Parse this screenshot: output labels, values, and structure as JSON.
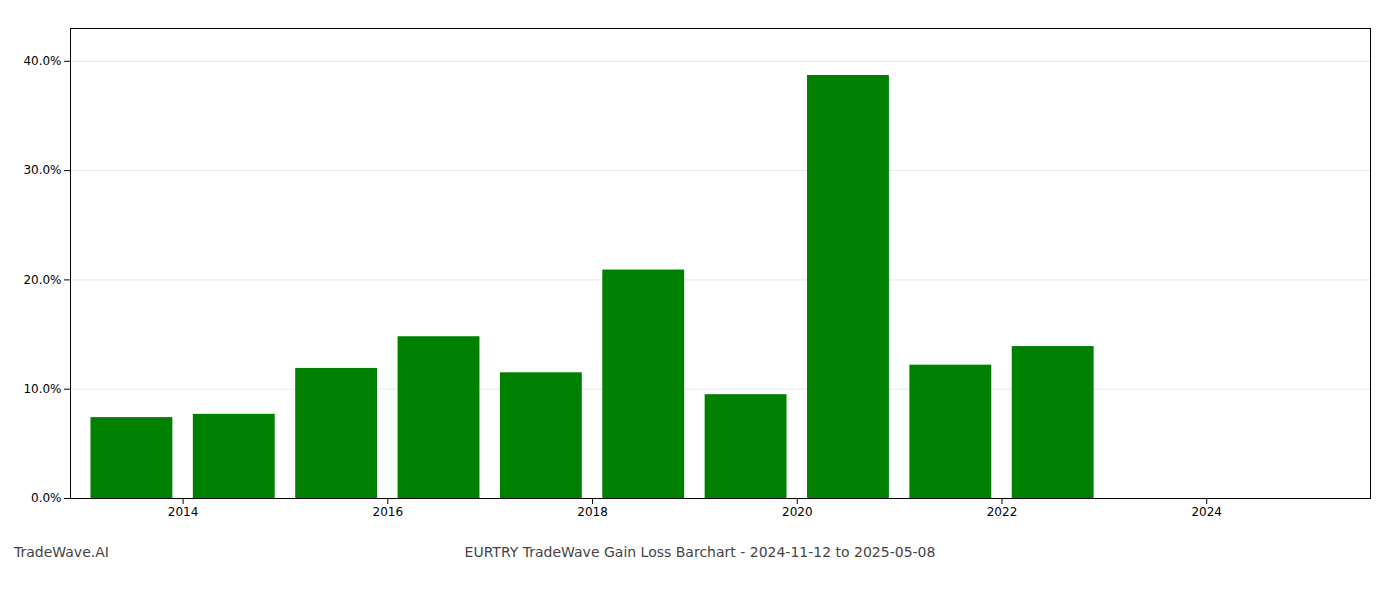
{
  "chart_data": {
    "type": "bar",
    "title": "EURTRY TradeWave Gain Loss Barchart - 2024-11-12 to 2025-05-08",
    "annotations": [
      "TradeWave.AI"
    ],
    "x": [
      2013,
      2014,
      2015,
      2016,
      2017,
      2018,
      2019,
      2020,
      2021,
      2022,
      2023
    ],
    "values": [
      0.074,
      0.077,
      0.119,
      0.148,
      0.115,
      0.209,
      0.095,
      0.387,
      0.122,
      0.139,
      0.0
    ],
    "color": "#008000",
    "xlim": [
      2012.4,
      2025.1
    ],
    "xticks": [
      {
        "value": 2013.5,
        "label": "2014"
      },
      {
        "value": 2015.5,
        "label": "2016"
      },
      {
        "value": 2017.5,
        "label": "2018"
      },
      {
        "value": 2019.5,
        "label": "2020"
      },
      {
        "value": 2021.5,
        "label": "2022"
      },
      {
        "value": 2023.5,
        "label": "2024"
      }
    ],
    "ylim": [
      0,
      0.43
    ],
    "yticks": [
      {
        "value": 0.0,
        "label": "0.0%"
      },
      {
        "value": 0.1,
        "label": "10.0%"
      },
      {
        "value": 0.2,
        "label": "20.0%"
      },
      {
        "value": 0.3,
        "label": "30.0%"
      },
      {
        "value": 0.4,
        "label": "40.0%"
      }
    ],
    "grid": true
  }
}
